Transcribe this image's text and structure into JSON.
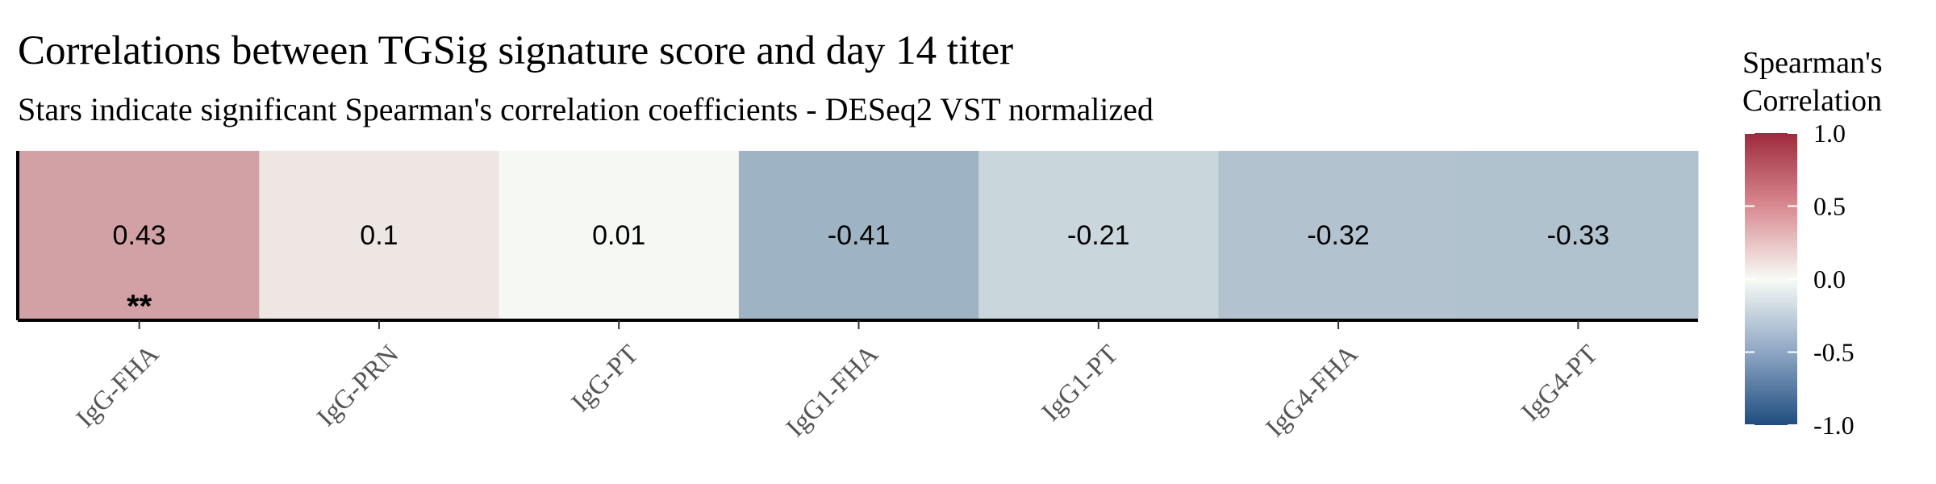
{
  "chart_data": {
    "type": "heatmap",
    "title": "Correlations between TGSig signature score and day 14 titer",
    "subtitle": "Stars indicate significant Spearman's correlation coefficients - DESeq2 VST normalized",
    "categories": [
      "IgG-FHA",
      "IgG-PRN",
      "IgG-PT",
      "IgG1-FHA",
      "IgG1-PT",
      "IgG4-FHA",
      "IgG4-PT"
    ],
    "values": [
      0.43,
      0.1,
      0.01,
      -0.41,
      -0.21,
      -0.32,
      -0.33
    ],
    "value_labels": [
      "0.43",
      "0.1",
      "0.01",
      "-0.41",
      "-0.21",
      "-0.32",
      "-0.33"
    ],
    "significance": [
      "**",
      "",
      "",
      "",
      "",
      "",
      ""
    ],
    "legend": {
      "title_line1": "Spearman's",
      "title_line2": "Correlation",
      "range": [
        -1.0,
        1.0
      ],
      "ticks": [
        1.0,
        0.5,
        0.0,
        -0.5,
        -1.0
      ],
      "tick_labels": [
        "1.0",
        "0.5",
        "0.0",
        "-0.5",
        "-1.0"
      ],
      "placement": "right"
    },
    "colors": {
      "high": "#9E2A3C",
      "mid": "#F7FBF5",
      "low": "#1E4D7F"
    }
  }
}
